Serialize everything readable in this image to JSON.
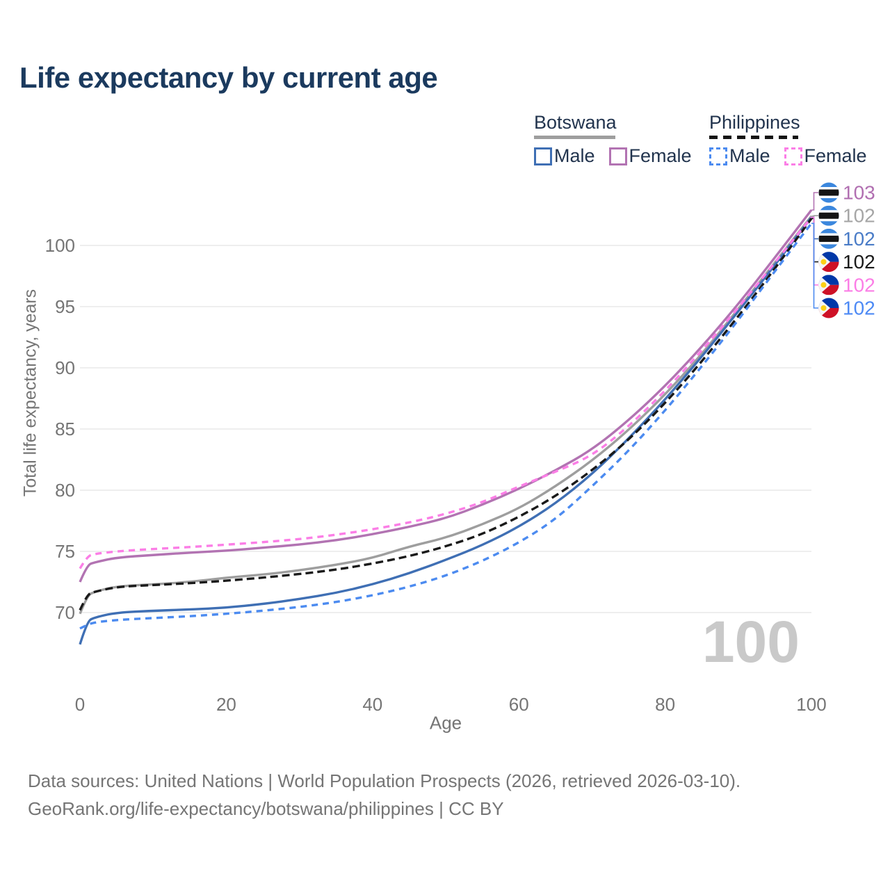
{
  "title": "Life expectancy by current age",
  "legend": {
    "groups": [
      {
        "label": "Botswana",
        "line_style": "solid",
        "underline_color": "#9e9e9e",
        "items": [
          {
            "label": "Male",
            "color": "#3f6fb4",
            "dashed": false
          },
          {
            "label": "Female",
            "color": "#b273b2",
            "dashed": false
          }
        ]
      },
      {
        "label": "Philippines",
        "line_style": "dashed",
        "underline_color": "#141414",
        "items": [
          {
            "label": "Male",
            "color": "#4c8bf0",
            "dashed": true
          },
          {
            "label": "Female",
            "color": "#fb7ee6",
            "dashed": true
          }
        ]
      }
    ]
  },
  "watermark_age": "100",
  "footer": {
    "line1": "Data sources: United Nations | World Population Prospects (2026, retrieved 2026-03-10).",
    "line2": "GeoRank.org/life-expectancy/botswana/philippines | CC BY"
  },
  "chart_data": {
    "type": "line",
    "title": "Life expectancy by current age",
    "xlabel": "Age",
    "ylabel": "Total life expectancy, years",
    "x_ticks": [
      0,
      20,
      40,
      60,
      80,
      100
    ],
    "y_ticks": [
      70,
      75,
      80,
      85,
      90,
      95,
      100
    ],
    "xlim": [
      0,
      100
    ],
    "ylim": [
      66.5,
      103.5
    ],
    "grid": "horizontal-only",
    "legend_position": "top-right",
    "axis_color": "#757575",
    "gridline_color": "#e9e9e9",
    "watermark_color": "#c9c9c9",
    "x": [
      0,
      1,
      2,
      5,
      10,
      15,
      20,
      25,
      30,
      35,
      40,
      45,
      50,
      55,
      60,
      65,
      70,
      75,
      80,
      85,
      90,
      95,
      100
    ],
    "series": [
      {
        "name": "Botswana Male",
        "country": "Botswana",
        "sex": "Male",
        "color": "#3f6fb4",
        "dashed": false,
        "values": [
          67.4,
          69.3,
          69.6,
          70.0,
          70.15,
          70.25,
          70.4,
          70.7,
          71.1,
          71.6,
          72.3,
          73.2,
          74.3,
          75.5,
          77.0,
          78.9,
          81.3,
          84.2,
          87.4,
          90.9,
          94.6,
          98.4,
          102.3
        ]
      },
      {
        "name": "Botswana Female",
        "country": "Botswana",
        "sex": "Female",
        "color": "#b273b2",
        "dashed": false,
        "values": [
          72.5,
          73.9,
          74.1,
          74.5,
          74.7,
          74.9,
          75.05,
          75.3,
          75.55,
          75.9,
          76.4,
          77.0,
          77.7,
          78.8,
          80.1,
          81.6,
          83.3,
          85.7,
          88.5,
          91.7,
          95.2,
          99.0,
          102.9
        ]
      },
      {
        "name": "Botswana Average",
        "country": "Botswana",
        "sex": "Both",
        "color": "#9e9e9e",
        "dashed": false,
        "values": [
          69.9,
          71.4,
          71.7,
          72.15,
          72.3,
          72.5,
          72.85,
          73.1,
          73.45,
          73.9,
          74.45,
          75.4,
          76.1,
          77.2,
          78.5,
          80.3,
          82.4,
          84.9,
          87.8,
          91.1,
          94.8,
          98.6,
          102.4
        ]
      },
      {
        "name": "Philippines Male",
        "country": "Philippines",
        "sex": "Male",
        "color": "#4c8bf0",
        "dashed": true,
        "values": [
          68.7,
          69.0,
          69.2,
          69.4,
          69.55,
          69.7,
          69.9,
          70.15,
          70.45,
          70.85,
          71.4,
          72.1,
          73.0,
          74.2,
          75.7,
          77.6,
          80.3,
          83.2,
          86.5,
          90.1,
          93.9,
          97.9,
          101.8
        ]
      },
      {
        "name": "Philippines Female",
        "country": "Philippines",
        "sex": "Female",
        "color": "#fb7ee6",
        "dashed": true,
        "values": [
          73.6,
          74.6,
          74.8,
          75.0,
          75.2,
          75.35,
          75.55,
          75.75,
          76.0,
          76.35,
          76.8,
          77.35,
          78.05,
          79.0,
          80.3,
          81.5,
          82.8,
          85.2,
          88.1,
          91.4,
          94.9,
          98.6,
          102.3
        ]
      },
      {
        "name": "Philippines Average",
        "country": "Philippines",
        "sex": "Both",
        "color": "#1a1a1a",
        "dashed": true,
        "values": [
          70.2,
          71.5,
          71.7,
          72.1,
          72.25,
          72.4,
          72.6,
          72.85,
          73.15,
          73.5,
          74.0,
          74.6,
          75.4,
          76.4,
          77.8,
          79.5,
          81.6,
          84.1,
          87.1,
          90.5,
          94.2,
          98.1,
          102.2
        ]
      }
    ],
    "end_labels": [
      {
        "series": "Botswana Female",
        "flag": "botswana",
        "value": "103",
        "label_color": "#b16fb1"
      },
      {
        "series": "Botswana Average",
        "flag": "botswana",
        "value": "102",
        "label_color": "#a6a6a6"
      },
      {
        "series": "Botswana Male",
        "flag": "botswana",
        "value": "102",
        "label_color": "#4a7cc7"
      },
      {
        "series": "Philippines Average",
        "flag": "philippines",
        "value": "102",
        "label_color": "#1a1a1a"
      },
      {
        "series": "Philippines Female",
        "flag": "philippines",
        "value": "102",
        "label_color": "#fb7ee6"
      },
      {
        "series": "Philippines Male",
        "flag": "philippines",
        "value": "102",
        "label_color": "#4d8af5"
      }
    ],
    "flag_colors": {
      "botswana_blue": "#3b87dd",
      "botswana_black": "#141414",
      "botswana_white": "#ffffff",
      "philippines_blue": "#0038a8",
      "philippines_red": "#ce1126",
      "philippines_white": "#f5f5f5",
      "philippines_yellow": "#fcd116"
    }
  }
}
